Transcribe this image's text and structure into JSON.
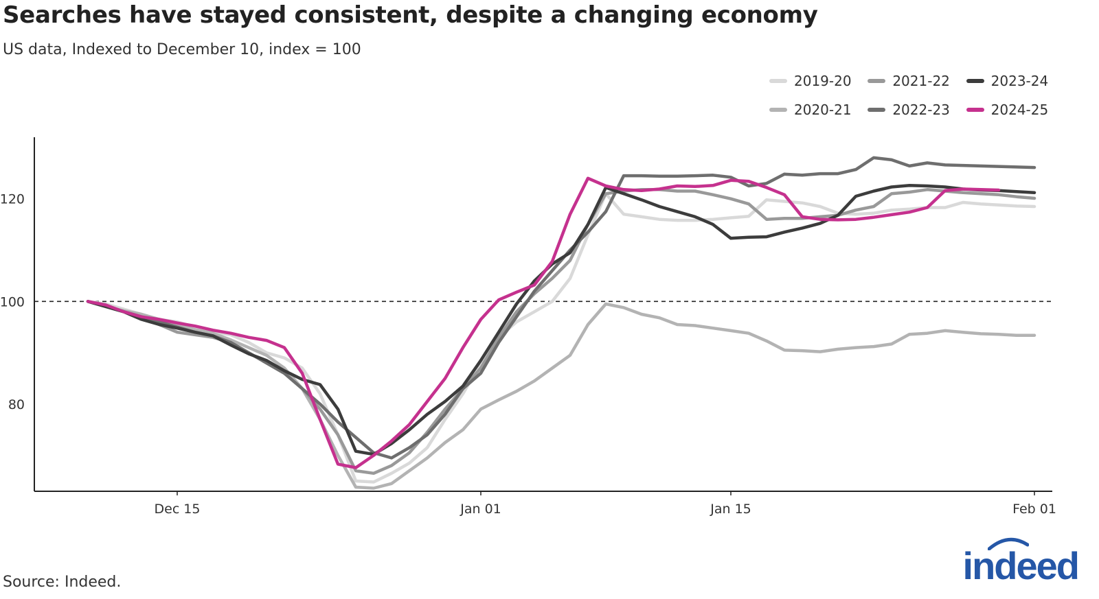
{
  "title": "Searches have stayed consistent, despite a changing economy",
  "subtitle": "US data, Indexed to December 10, index = 100",
  "source": "Source: Indeed.",
  "logo_text": "indeed",
  "chart_data": {
    "type": "line",
    "title": "Searches have stayed consistent, despite a changing economy",
    "subtitle": "US data, Indexed to December 10, index = 100",
    "xlabel": "",
    "ylabel": "",
    "x_unit": "days since December 10",
    "xlim": [
      -3,
      54
    ],
    "ylim": [
      63,
      132
    ],
    "x_ticks": [
      {
        "x": 5,
        "label": "Dec 15"
      },
      {
        "x": 22,
        "label": "Jan 01"
      },
      {
        "x": 36,
        "label": "Jan 15"
      },
      {
        "x": 53,
        "label": "Feb 01"
      }
    ],
    "y_ticks": [
      {
        "y": 80,
        "label": "80"
      },
      {
        "y": 100,
        "label": "100"
      },
      {
        "y": 120,
        "label": "120"
      }
    ],
    "reference_line": 100,
    "legend_position": "top-right",
    "series": [
      {
        "name": "2019-20",
        "color": "#d9d9d9",
        "x": [
          0,
          1,
          2,
          3,
          4,
          5,
          6,
          7,
          8,
          9,
          10,
          11,
          12,
          13,
          14,
          15,
          16,
          17,
          18,
          19,
          20,
          21,
          22,
          23,
          24,
          25,
          26,
          27,
          28,
          29,
          30,
          31,
          32,
          33,
          34,
          35,
          36,
          37,
          38,
          39,
          40,
          41,
          42,
          43,
          44,
          45,
          46,
          47,
          48,
          49,
          50,
          51,
          52,
          53
        ],
        "values": [
          100,
          99.5,
          98.5,
          97.5,
          96.5,
          96,
          95,
          94,
          93.5,
          92,
          90,
          89,
          87,
          82,
          74,
          65,
          64.8,
          66.5,
          68.5,
          71.5,
          77,
          82,
          88,
          93,
          96,
          98,
          100,
          104.5,
          113,
          121,
          117,
          116.5,
          116,
          115.8,
          115.8,
          116,
          116.3,
          116.6,
          119.8,
          119.5,
          119.2,
          118.5,
          117.2,
          117,
          117.2,
          117.8,
          118,
          118.3,
          118.3,
          119.3,
          119,
          118.8,
          118.6,
          118.5
        ]
      },
      {
        "name": "2020-21",
        "color": "#b3b3b3",
        "x": [
          0,
          1,
          2,
          3,
          4,
          5,
          6,
          7,
          8,
          9,
          10,
          11,
          12,
          13,
          14,
          15,
          16,
          17,
          18,
          19,
          20,
          21,
          22,
          23,
          24,
          25,
          26,
          27,
          28,
          29,
          30,
          31,
          32,
          33,
          34,
          35,
          36,
          37,
          38,
          39,
          40,
          41,
          42,
          43,
          44,
          45,
          46,
          47,
          48,
          49,
          50,
          51,
          52,
          53
        ],
        "values": [
          100,
          99,
          98.2,
          97.5,
          96.5,
          95.5,
          94.5,
          93.8,
          92.5,
          91,
          89.5,
          87,
          83,
          77,
          70,
          63.8,
          63.6,
          64.5,
          67,
          69.5,
          72.5,
          75,
          79,
          80.8,
          82.5,
          84.5,
          87,
          89.5,
          95.5,
          99.5,
          98.8,
          97.5,
          96.8,
          95.5,
          95.3,
          94.8,
          94.3,
          93.8,
          92.3,
          90.5,
          90.4,
          90.2,
          90.7,
          91,
          91.2,
          91.7,
          93.6,
          93.8,
          94.3,
          94,
          93.7,
          93.6,
          93.4,
          93.4
        ]
      },
      {
        "name": "2021-22",
        "color": "#999999",
        "x": [
          0,
          1,
          2,
          3,
          4,
          5,
          6,
          7,
          8,
          9,
          10,
          11,
          12,
          13,
          14,
          15,
          16,
          17,
          18,
          19,
          20,
          21,
          22,
          23,
          24,
          25,
          26,
          27,
          28,
          29,
          30,
          31,
          32,
          33,
          34,
          35,
          36,
          37,
          38,
          39,
          40,
          41,
          42,
          43,
          44,
          45,
          46,
          47,
          48,
          49,
          50,
          51,
          52,
          53
        ],
        "values": [
          100,
          99,
          98,
          97,
          95.5,
          94,
          93.5,
          93,
          92,
          90,
          88,
          86,
          83,
          79,
          74,
          67,
          66.5,
          68,
          70.5,
          74.5,
          79,
          83,
          87,
          93,
          98,
          101.5,
          104.5,
          108,
          115,
          121,
          121.5,
          121.8,
          121.8,
          121.5,
          121.5,
          120.8,
          120,
          119,
          116,
          116.2,
          116.2,
          116.5,
          116.8,
          117.8,
          118.5,
          121,
          121.3,
          121.8,
          121.5,
          121.2,
          121,
          120.8,
          120.4,
          120.1
        ]
      },
      {
        "name": "2022-23",
        "color": "#6e6e6e",
        "x": [
          0,
          1,
          2,
          3,
          4,
          5,
          6,
          7,
          8,
          9,
          10,
          11,
          12,
          13,
          14,
          15,
          16,
          17,
          18,
          19,
          20,
          21,
          22,
          23,
          24,
          25,
          26,
          27,
          28,
          29,
          30,
          31,
          32,
          33,
          34,
          35,
          36,
          37,
          38,
          39,
          40,
          41,
          42,
          43,
          44,
          45,
          46,
          47,
          48,
          49,
          50,
          51,
          52,
          53
        ],
        "values": [
          100,
          99.2,
          98,
          97,
          96,
          95,
          94,
          93.3,
          92,
          90,
          88,
          86,
          83,
          80,
          76.5,
          73.5,
          70.5,
          69.5,
          71.5,
          74,
          78,
          83,
          86,
          92,
          97,
          102,
          106,
          110,
          113.5,
          117.5,
          124.5,
          124.5,
          124.4,
          124.4,
          124.5,
          124.6,
          124.2,
          122.5,
          123,
          124.8,
          124.6,
          124.9,
          124.9,
          125.7,
          128,
          127.6,
          126.4,
          127,
          126.6,
          126.5,
          126.4,
          126.3,
          126.2,
          126.1
        ]
      },
      {
        "name": "2023-24",
        "color": "#3c3c3c",
        "x": [
          0,
          1,
          2,
          3,
          4,
          5,
          6,
          7,
          8,
          9,
          10,
          11,
          12,
          13,
          14,
          15,
          16,
          17,
          18,
          19,
          20,
          21,
          22,
          23,
          24,
          25,
          26,
          27,
          28,
          29,
          30,
          31,
          32,
          33,
          34,
          35,
          36,
          37,
          38,
          39,
          40,
          41,
          42,
          43,
          44,
          45,
          46,
          47,
          48,
          49,
          50,
          51,
          52,
          53
        ],
        "values": [
          100,
          99,
          98,
          96.5,
          95.5,
          94.8,
          94,
          93.3,
          91.5,
          89.8,
          88.5,
          86.5,
          84.8,
          83.8,
          79,
          70.8,
          70.2,
          72.3,
          75,
          78,
          80.5,
          83.5,
          88.5,
          94,
          99.5,
          104,
          107.3,
          109.5,
          115,
          122.2,
          121,
          119.8,
          118.5,
          117.5,
          116.5,
          115,
          112.3,
          112.5,
          112.6,
          113.5,
          114.3,
          115.2,
          116.8,
          120.5,
          121.5,
          122.3,
          122.6,
          122.5,
          122.3,
          121.9,
          121.7,
          121.6,
          121.4,
          121.2
        ]
      },
      {
        "name": "2024-25",
        "color": "#c5318e",
        "x": [
          0,
          1,
          2,
          3,
          4,
          5,
          6,
          7,
          8,
          9,
          10,
          11,
          12,
          13,
          14,
          15,
          16,
          17,
          18,
          19,
          20,
          21,
          22,
          23,
          24,
          25,
          26,
          27,
          28,
          29,
          30,
          31,
          32,
          33,
          34,
          35,
          36,
          37,
          38,
          39,
          40,
          41,
          42,
          43,
          44,
          45,
          46,
          47,
          48,
          49,
          50,
          51
        ],
        "values": [
          100,
          99.3,
          98,
          97,
          96.5,
          95.8,
          95.2,
          94.4,
          93.8,
          93,
          92.4,
          91,
          86,
          77,
          68.3,
          67.6,
          70,
          72.8,
          76,
          80.5,
          85,
          91,
          96.5,
          100.3,
          101.8,
          103.2,
          107.8,
          117,
          124,
          122.5,
          121.8,
          121.6,
          121.9,
          122.5,
          122.4,
          122.6,
          123.6,
          123.4,
          122.2,
          120.8,
          116.5,
          116,
          115.9,
          116,
          116.4,
          116.9,
          117.4,
          118.3,
          121.6,
          121.9,
          121.8,
          121.7
        ]
      }
    ]
  }
}
